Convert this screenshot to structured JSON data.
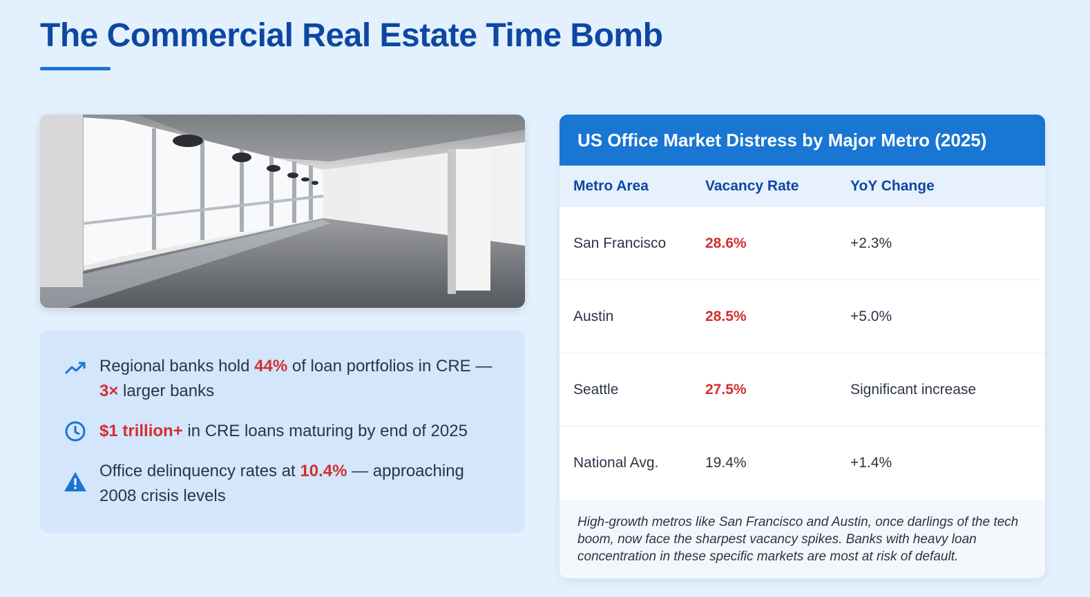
{
  "header": {
    "title": "The Commercial Real Estate Time Bomb"
  },
  "photo": {
    "description_icon": "empty-office-photo"
  },
  "facts": [
    {
      "icon": "trending-up-icon",
      "parts": [
        [
          "Regional banks hold ",
          false
        ],
        [
          "44%",
          true
        ],
        [
          " of loan portfolios in CRE — ",
          false
        ],
        [
          "3×",
          true
        ],
        [
          " larger banks",
          false
        ]
      ]
    },
    {
      "icon": "clock-icon",
      "parts": [
        [
          "$1 trillion+",
          true
        ],
        [
          " in CRE loans maturing by end of 2025",
          false
        ]
      ]
    },
    {
      "icon": "warning-icon",
      "parts": [
        [
          "Office delinquency rates at ",
          false
        ],
        [
          "10.4%",
          true
        ],
        [
          " — approaching 2008 crisis levels",
          false
        ]
      ]
    }
  ],
  "table": {
    "title": "US Office Market Distress by Major Metro (2025)",
    "columns": [
      "Metro Area",
      "Vacancy Rate",
      "YoY Change"
    ],
    "rows": [
      {
        "metro": "San Francisco",
        "vacancy": "28.6%",
        "change": "+2.3%",
        "highlight": true
      },
      {
        "metro": "Austin",
        "vacancy": "28.5%",
        "change": "+5.0%",
        "highlight": true
      },
      {
        "metro": "Seattle",
        "vacancy": "27.5%",
        "change": "Significant increase",
        "highlight": true
      },
      {
        "metro": "National Avg.",
        "vacancy": "19.4%",
        "change": "+1.4%",
        "highlight": false
      }
    ],
    "note": "High-growth metros like San Francisco and Austin, once darlings of the tech boom, now face the sharpest vacancy spikes. Banks with heavy loan concentration in these specific markets are most at risk of default."
  },
  "colors": {
    "accent": "#1976d2",
    "title": "#0d47a1",
    "highlight": "#d32f2f",
    "background": "#e3f0fd"
  }
}
